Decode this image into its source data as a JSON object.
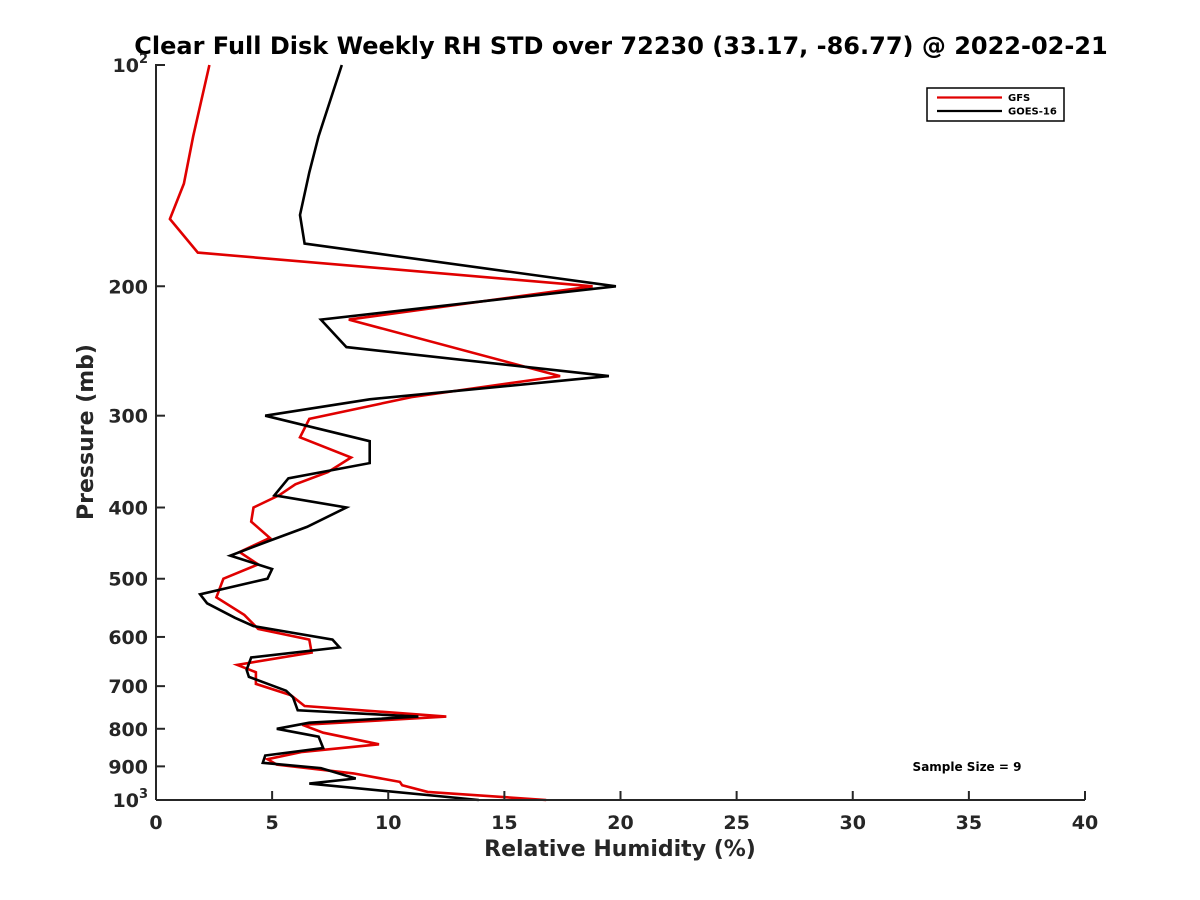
{
  "chart_data": {
    "type": "line",
    "title": "Clear Full Disk Weekly RH STD over 72230 (33.17, -86.77) @ 2022-02-21",
    "xlabel": "Relative Humidity (%)",
    "ylabel": "Pressure (mb)",
    "xlim": [
      0,
      40
    ],
    "ylim": [
      100,
      1000
    ],
    "yscale": "log",
    "yreversed": true,
    "grid": false,
    "legend_location": "top-right",
    "xticks": [
      0,
      5,
      10,
      15,
      20,
      25,
      30,
      35,
      40
    ],
    "xtick_labels": [
      "0",
      "5",
      "10",
      "15",
      "20",
      "25",
      "30",
      "35",
      "40"
    ],
    "yticks": [
      {
        "value": 100,
        "base": "10",
        "exp": "2"
      },
      {
        "value": 200,
        "label": "200"
      },
      {
        "value": 300,
        "label": "300"
      },
      {
        "value": 400,
        "label": "400"
      },
      {
        "value": 500,
        "label": "500"
      },
      {
        "value": 600,
        "label": "600"
      },
      {
        "value": 700,
        "label": "700"
      },
      {
        "value": 800,
        "label": "800"
      },
      {
        "value": 900,
        "label": "900"
      },
      {
        "value": 1000,
        "base": "10",
        "exp": "3"
      }
    ],
    "annotation": "Sample Size = 9",
    "series": [
      {
        "name": "GFS",
        "color": "#e00000",
        "points": [
          [
            2.3,
            100
          ],
          [
            1.6,
            125
          ],
          [
            1.2,
            145
          ],
          [
            0.6,
            162
          ],
          [
            1.8,
            180
          ],
          [
            18.8,
            200
          ],
          [
            8.3,
            222
          ],
          [
            17.4,
            265
          ],
          [
            11,
            283
          ],
          [
            6.6,
            303
          ],
          [
            6.2,
            321
          ],
          [
            8.4,
            342
          ],
          [
            7.4,
            358
          ],
          [
            6,
            372
          ],
          [
            5.3,
            385
          ],
          [
            4.2,
            400
          ],
          [
            4.1,
            418
          ],
          [
            4.9,
            440
          ],
          [
            3.6,
            460
          ],
          [
            4.4,
            478
          ],
          [
            2.9,
            500
          ],
          [
            2.6,
            530
          ],
          [
            3.8,
            560
          ],
          [
            4.4,
            585
          ],
          [
            6.6,
            605
          ],
          [
            6.7,
            630
          ],
          [
            3.5,
            655
          ],
          [
            4.3,
            670
          ],
          [
            4.3,
            695
          ],
          [
            5.8,
            720
          ],
          [
            6.4,
            745
          ],
          [
            12.5,
            770
          ],
          [
            6.3,
            790
          ],
          [
            7.2,
            810
          ],
          [
            9.6,
            840
          ],
          [
            6.3,
            860
          ],
          [
            4.8,
            880
          ],
          [
            5.2,
            895
          ],
          [
            8.5,
            920
          ],
          [
            10.5,
            945
          ],
          [
            10.6,
            955
          ],
          [
            11.7,
            975
          ],
          [
            16.8,
            1000
          ]
        ]
      },
      {
        "name": "GOES-16",
        "color": "#000000",
        "points": [
          [
            8,
            100
          ],
          [
            7,
            125
          ],
          [
            6.6,
            140
          ],
          [
            6.2,
            160
          ],
          [
            6.4,
            175
          ],
          [
            19.8,
            200
          ],
          [
            7.1,
            222
          ],
          [
            8.2,
            242
          ],
          [
            19.5,
            265
          ],
          [
            9.2,
            285
          ],
          [
            4.7,
            300
          ],
          [
            9.2,
            325
          ],
          [
            9.2,
            348
          ],
          [
            5.7,
            365
          ],
          [
            5.1,
            385
          ],
          [
            8.2,
            400
          ],
          [
            6.5,
            425
          ],
          [
            4.8,
            445
          ],
          [
            3.2,
            465
          ],
          [
            5,
            485
          ],
          [
            4.8,
            500
          ],
          [
            1.9,
            525
          ],
          [
            2.2,
            540
          ],
          [
            3.4,
            565
          ],
          [
            4.2,
            580
          ],
          [
            7.6,
            605
          ],
          [
            7.9,
            620
          ],
          [
            4.1,
            640
          ],
          [
            3.9,
            665
          ],
          [
            4,
            680
          ],
          [
            5.6,
            710
          ],
          [
            5.9,
            725
          ],
          [
            6.1,
            755
          ],
          [
            11.3,
            770
          ],
          [
            6.6,
            785
          ],
          [
            5.2,
            800
          ],
          [
            7,
            820
          ],
          [
            7.2,
            850
          ],
          [
            4.7,
            870
          ],
          [
            4.6,
            890
          ],
          [
            7.1,
            905
          ],
          [
            8.6,
            935
          ],
          [
            6.6,
            950
          ],
          [
            13.9,
            1000
          ]
        ]
      }
    ]
  }
}
